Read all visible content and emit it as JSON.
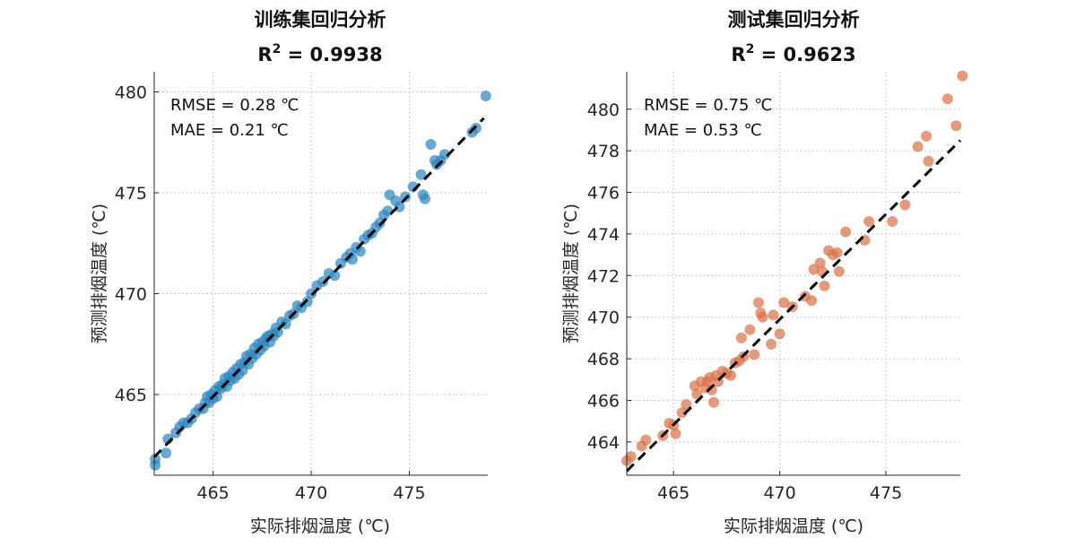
{
  "chart_data": [
    {
      "type": "scatter",
      "title": "训练集回归分析",
      "subtitle_prefix": "R",
      "subtitle_sup": "2",
      "subtitle_value": " = 0.9938",
      "xlabel": "实际排烟温度 (℃)",
      "ylabel": "预测排烟温度 (℃)",
      "xlim": [
        462,
        479
      ],
      "ylim": [
        461,
        481
      ],
      "xticks": [
        465,
        470,
        475
      ],
      "yticks": [
        465,
        470,
        475,
        480
      ],
      "grid": true,
      "color": "#2f86c0",
      "stats": [
        "RMSE = 0.28 ℃",
        "MAE = 0.21 ℃"
      ],
      "fit_line": {
        "x": [
          462,
          478.8
        ],
        "y": [
          461.9,
          478.7
        ]
      },
      "points": [
        [
          462.05,
          461.5
        ],
        [
          462.05,
          461.8
        ],
        [
          462.6,
          462.1
        ],
        [
          462.7,
          462.8
        ],
        [
          463.1,
          463.1
        ],
        [
          463.3,
          463.4
        ],
        [
          463.5,
          463.6
        ],
        [
          463.7,
          463.6
        ],
        [
          463.9,
          463.8
        ],
        [
          464.1,
          464.1
        ],
        [
          464.3,
          464.3
        ],
        [
          464.5,
          464.3
        ],
        [
          464.6,
          464.6
        ],
        [
          464.7,
          464.9
        ],
        [
          464.8,
          464.6
        ],
        [
          464.9,
          465.0
        ],
        [
          465.0,
          464.8
        ],
        [
          465.1,
          465.2
        ],
        [
          465.2,
          464.9
        ],
        [
          465.3,
          465.4
        ],
        [
          465.4,
          465.3
        ],
        [
          465.5,
          465.5
        ],
        [
          465.6,
          465.8
        ],
        [
          465.7,
          465.4
        ],
        [
          465.8,
          465.9
        ],
        [
          465.9,
          465.7
        ],
        [
          466.0,
          466.1
        ],
        [
          466.1,
          465.8
        ],
        [
          466.2,
          466.3
        ],
        [
          466.3,
          466.0
        ],
        [
          466.4,
          466.5
        ],
        [
          466.5,
          466.2
        ],
        [
          466.6,
          466.6
        ],
        [
          466.7,
          466.9
        ],
        [
          466.8,
          466.5
        ],
        [
          466.9,
          467.0
        ],
        [
          467.0,
          466.8
        ],
        [
          467.1,
          467.3
        ],
        [
          467.2,
          467.0
        ],
        [
          467.3,
          467.5
        ],
        [
          467.4,
          467.2
        ],
        [
          467.5,
          467.6
        ],
        [
          467.6,
          467.4
        ],
        [
          467.7,
          467.8
        ],
        [
          467.8,
          467.9
        ],
        [
          467.9,
          467.6
        ],
        [
          468.0,
          468.0
        ],
        [
          468.1,
          467.9
        ],
        [
          468.2,
          468.3
        ],
        [
          468.3,
          468.1
        ],
        [
          468.5,
          468.6
        ],
        [
          468.7,
          468.5
        ],
        [
          468.9,
          468.9
        ],
        [
          469.1,
          469.0
        ],
        [
          469.3,
          469.4
        ],
        [
          469.5,
          469.3
        ],
        [
          469.8,
          469.6
        ],
        [
          470.0,
          470.0
        ],
        [
          470.3,
          470.4
        ],
        [
          470.6,
          470.6
        ],
        [
          470.9,
          471.0
        ],
        [
          471.2,
          470.9
        ],
        [
          471.5,
          471.5
        ],
        [
          471.8,
          471.8
        ],
        [
          472.0,
          472.0
        ],
        [
          472.1,
          471.7
        ],
        [
          472.3,
          472.3
        ],
        [
          472.5,
          472.1
        ],
        [
          472.7,
          472.7
        ],
        [
          472.9,
          472.9
        ],
        [
          473.1,
          473.0
        ],
        [
          473.3,
          473.3
        ],
        [
          473.5,
          473.5
        ],
        [
          473.7,
          473.9
        ],
        [
          473.9,
          474.1
        ],
        [
          474.0,
          474.9
        ],
        [
          474.3,
          474.6
        ],
        [
          474.5,
          474.3
        ],
        [
          474.8,
          474.8
        ],
        [
          475.2,
          475.3
        ],
        [
          475.6,
          475.9
        ],
        [
          475.7,
          474.9
        ],
        [
          475.8,
          474.7
        ],
        [
          476.1,
          477.4
        ],
        [
          476.3,
          476.6
        ],
        [
          476.4,
          476.4
        ],
        [
          476.6,
          476.6
        ],
        [
          476.8,
          476.9
        ],
        [
          478.2,
          478.0
        ],
        [
          478.4,
          478.2
        ],
        [
          478.9,
          479.8
        ]
      ]
    },
    {
      "type": "scatter",
      "title": "测试集回归分析",
      "subtitle_prefix": "R",
      "subtitle_sup": "2",
      "subtitle_value": " = 0.9623",
      "xlabel": "实际排烟温度 (℃)",
      "ylabel": "预测排烟温度 (℃)",
      "xlim": [
        462.8,
        478.5
      ],
      "ylim": [
        462.4,
        481.8
      ],
      "xticks": [
        465,
        470,
        475
      ],
      "yticks": [
        464,
        466,
        468,
        470,
        472,
        474,
        476,
        478,
        480
      ],
      "grid": true,
      "color": "#d9734a",
      "stats": [
        "RMSE = 0.75 ℃",
        "MAE = 0.53 ℃"
      ],
      "fit_line": {
        "x": [
          462.8,
          478.5
        ],
        "y": [
          462.6,
          478.5
        ]
      },
      "points": [
        [
          462.8,
          463.1
        ],
        [
          463.0,
          463.3
        ],
        [
          463.5,
          463.8
        ],
        [
          463.7,
          464.1
        ],
        [
          464.5,
          464.3
        ],
        [
          464.8,
          464.9
        ],
        [
          465.0,
          464.8
        ],
        [
          465.1,
          464.4
        ],
        [
          465.4,
          465.4
        ],
        [
          465.6,
          465.8
        ],
        [
          466.0,
          466.7
        ],
        [
          466.1,
          466.3
        ],
        [
          466.3,
          466.9
        ],
        [
          466.5,
          466.6
        ],
        [
          466.6,
          466.9
        ],
        [
          466.7,
          467.1
        ],
        [
          466.8,
          466.5
        ],
        [
          466.9,
          465.9
        ],
        [
          467.0,
          467.2
        ],
        [
          467.1,
          466.9
        ],
        [
          467.3,
          467.4
        ],
        [
          467.5,
          467.3
        ],
        [
          467.7,
          467.2
        ],
        [
          467.9,
          467.8
        ],
        [
          468.1,
          467.9
        ],
        [
          468.2,
          469.0
        ],
        [
          468.3,
          468.1
        ],
        [
          468.6,
          469.4
        ],
        [
          468.8,
          468.2
        ],
        [
          469.0,
          470.7
        ],
        [
          469.1,
          470.2
        ],
        [
          469.2,
          470.0
        ],
        [
          469.6,
          468.7
        ],
        [
          469.7,
          470.1
        ],
        [
          470.0,
          469.2
        ],
        [
          470.2,
          470.7
        ],
        [
          470.6,
          470.5
        ],
        [
          471.2,
          471.0
        ],
        [
          471.5,
          470.8
        ],
        [
          471.6,
          472.3
        ],
        [
          471.9,
          472.6
        ],
        [
          472.0,
          472.2
        ],
        [
          472.1,
          471.5
        ],
        [
          472.3,
          473.2
        ],
        [
          472.5,
          473.0
        ],
        [
          472.7,
          473.1
        ],
        [
          472.8,
          472.2
        ],
        [
          473.1,
          474.1
        ],
        [
          474.0,
          473.7
        ],
        [
          474.2,
          474.6
        ],
        [
          475.3,
          474.6
        ],
        [
          475.9,
          475.4
        ],
        [
          476.5,
          478.2
        ],
        [
          476.9,
          478.7
        ],
        [
          477.0,
          477.5
        ],
        [
          477.9,
          480.5
        ],
        [
          478.3,
          479.2
        ],
        [
          478.6,
          481.6
        ]
      ]
    }
  ]
}
